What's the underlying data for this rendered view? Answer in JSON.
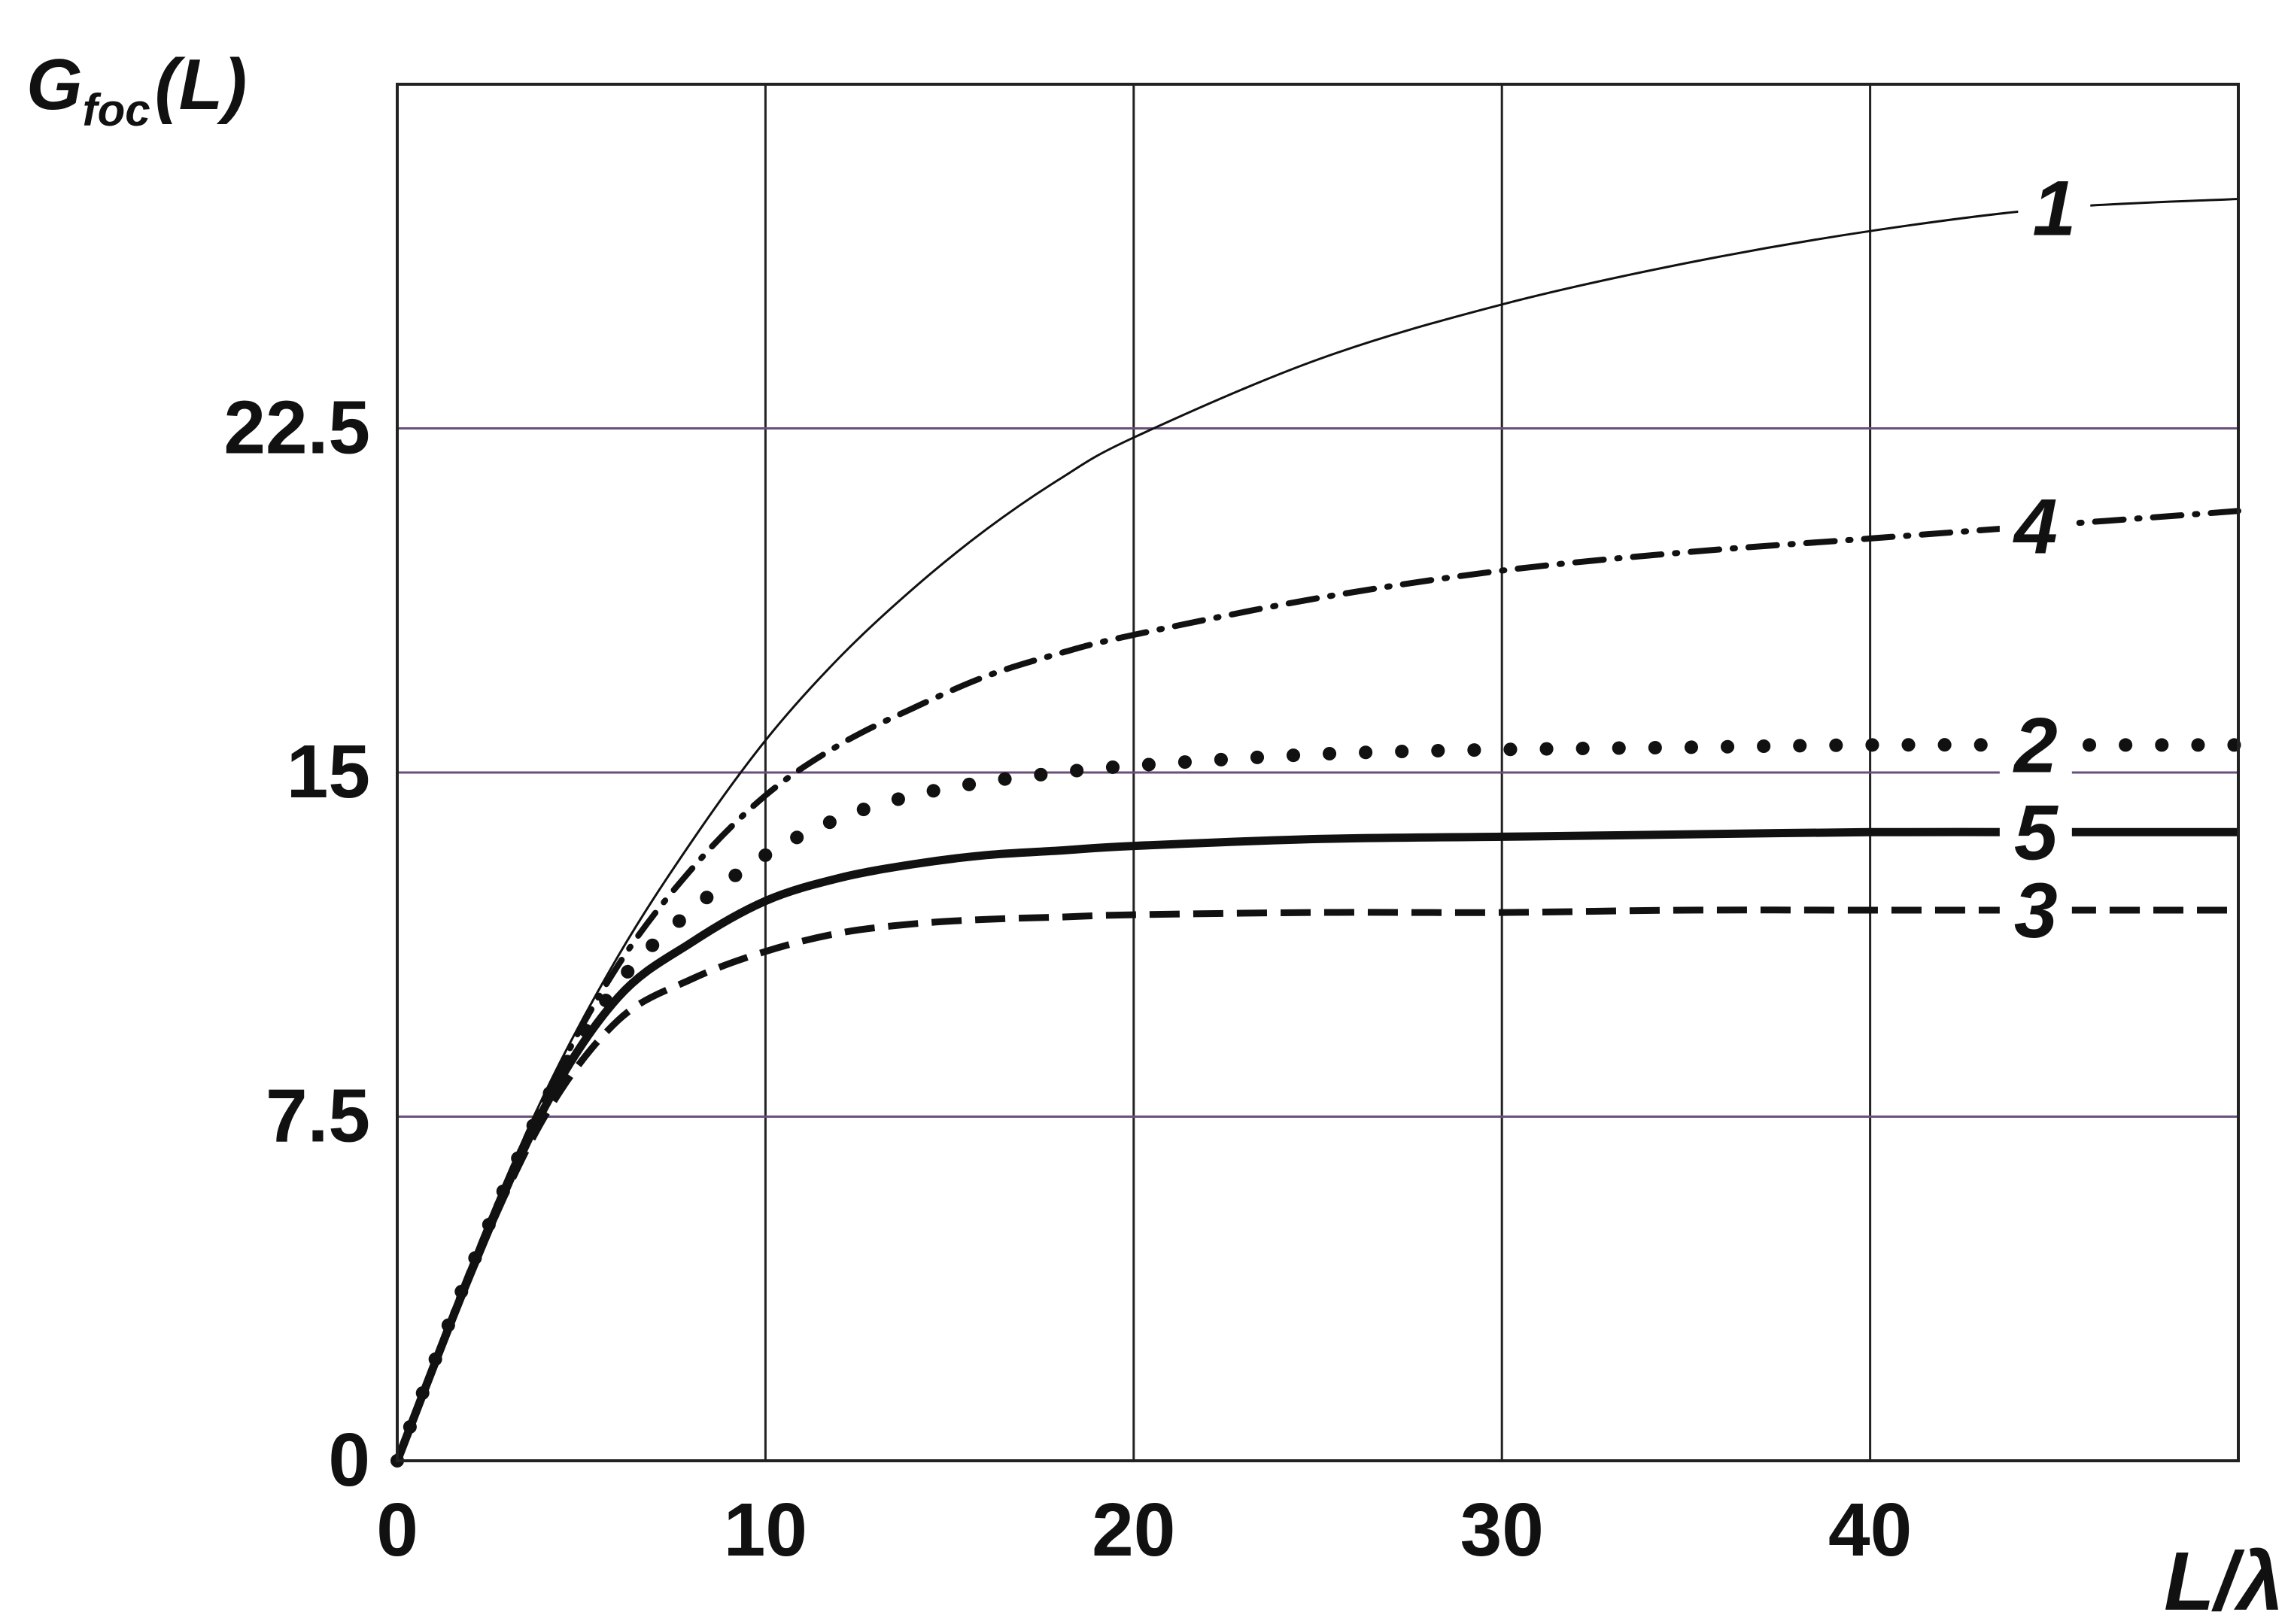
{
  "chart_data": {
    "type": "line",
    "title": "",
    "ylabel_main": "G",
    "ylabel_sub": "foc",
    "ylabel_tail": "(L)",
    "xlabel": "L/λ",
    "xlim": [
      0,
      50
    ],
    "ylim": [
      0,
      30
    ],
    "x_ticks": [
      {
        "value": 0,
        "label": "0"
      },
      {
        "value": 10,
        "label": "10"
      },
      {
        "value": 20,
        "label": "20"
      },
      {
        "value": 30,
        "label": "30"
      },
      {
        "value": 40,
        "label": "40"
      }
    ],
    "y_ticks": [
      {
        "value": 0,
        "label": "0"
      },
      {
        "value": 7.5,
        "label": "7.5"
      },
      {
        "value": 15,
        "label": "15"
      },
      {
        "value": 22.5,
        "label": "22.5"
      }
    ],
    "grid": true,
    "vertical_grid_color": "#222222",
    "horizontal_grid_color": "#6a4f78",
    "series": [
      {
        "name": "1",
        "style": "thin",
        "label_at": 45,
        "x": [
          0,
          2,
          4,
          6,
          8,
          10,
          12,
          14,
          16,
          18,
          20,
          25,
          30,
          35,
          40,
          45,
          50
        ],
        "y": [
          0,
          4.3,
          8.0,
          11.0,
          13.5,
          15.7,
          17.5,
          19.0,
          20.3,
          21.4,
          22.3,
          24.0,
          25.2,
          26.1,
          26.8,
          27.3,
          27.5
        ]
      },
      {
        "name": "4",
        "style": "dashdot",
        "label_at": 44.5,
        "x": [
          0,
          2,
          4,
          6,
          8,
          10,
          12,
          14,
          16,
          18,
          20,
          25,
          30,
          35,
          40,
          45,
          50
        ],
        "y": [
          0,
          4.2,
          7.9,
          10.8,
          12.9,
          14.5,
          15.6,
          16.4,
          17.1,
          17.6,
          18.0,
          18.8,
          19.4,
          19.8,
          20.1,
          20.4,
          20.7
        ]
      },
      {
        "name": "2",
        "style": "dotted",
        "label_at": 44.5,
        "x": [
          0,
          2,
          4,
          6,
          8,
          10,
          12,
          14,
          16,
          18,
          20,
          25,
          30,
          35,
          40,
          45,
          50
        ],
        "y": [
          0,
          4.2,
          7.8,
          10.4,
          12.0,
          13.2,
          14.0,
          14.5,
          14.8,
          15.0,
          15.15,
          15.4,
          15.5,
          15.55,
          15.6,
          15.6,
          15.6
        ]
      },
      {
        "name": "5",
        "style": "thick",
        "label_at": 44.5,
        "x": [
          0,
          2,
          4,
          6,
          8,
          10,
          12,
          14,
          16,
          18,
          20,
          25,
          30,
          35,
          40,
          45,
          50
        ],
        "y": [
          0,
          4.1,
          7.7,
          10.1,
          11.3,
          12.2,
          12.7,
          13.0,
          13.2,
          13.3,
          13.4,
          13.55,
          13.6,
          13.65,
          13.7,
          13.7,
          13.7
        ]
      },
      {
        "name": "3",
        "style": "dashed",
        "label_at": 44.5,
        "x": [
          0,
          2,
          4,
          6,
          8,
          10,
          12,
          14,
          16,
          18,
          20,
          25,
          30,
          35,
          40,
          45,
          50
        ],
        "y": [
          0,
          4.1,
          7.5,
          9.6,
          10.5,
          11.1,
          11.5,
          11.7,
          11.8,
          11.85,
          11.9,
          11.95,
          11.95,
          12.0,
          12.0,
          12.0,
          12.0
        ]
      }
    ]
  }
}
